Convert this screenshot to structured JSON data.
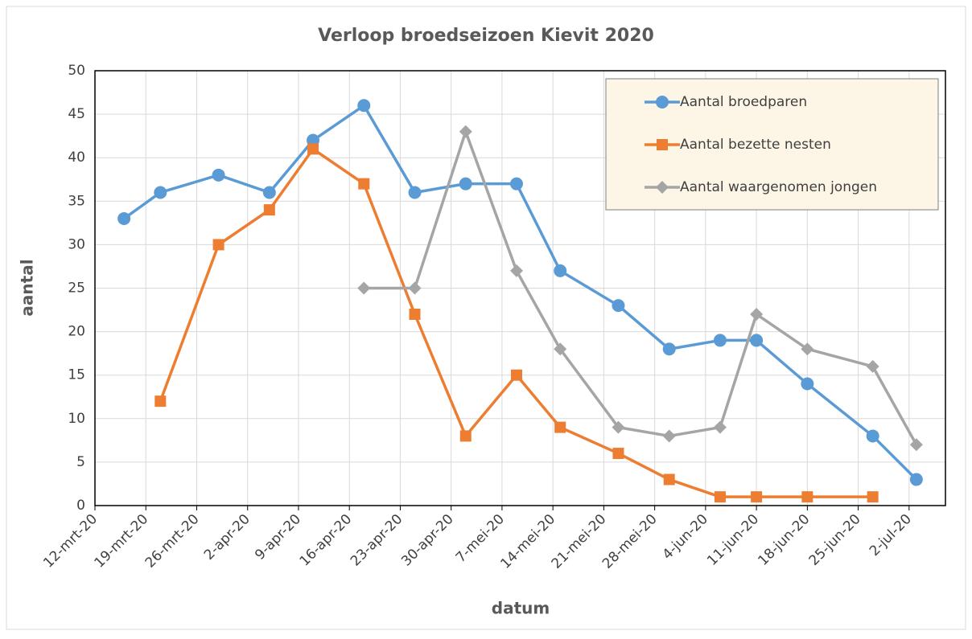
{
  "chart_data": {
    "type": "line",
    "title": "Verloop broedseizoen Kievit 2020",
    "x_label": "datum",
    "y_label": "aantal",
    "x": [
      "2020-03-16",
      "2020-03-21",
      "2020-03-29",
      "2020-04-05",
      "2020-04-11",
      "2020-04-18",
      "2020-04-25",
      "2020-05-02",
      "2020-05-09",
      "2020-05-15",
      "2020-05-23",
      "2020-05-30",
      "2020-06-06",
      "2020-06-11",
      "2020-06-18",
      "2020-06-27",
      "2020-07-03"
    ],
    "series": [
      {
        "name": "Aantal broedparen",
        "color": "#5b9bd5",
        "marker": "circle",
        "values": [
          33,
          36,
          38,
          36,
          42,
          46,
          36,
          37,
          37,
          27,
          23,
          18,
          19,
          19,
          14,
          8,
          3
        ]
      },
      {
        "name": "Aantal bezette nesten",
        "color": "#ed7d31",
        "marker": "square",
        "values": [
          null,
          12,
          30,
          34,
          41,
          37,
          22,
          8,
          15,
          9,
          6,
          3,
          1,
          1,
          1,
          1,
          null
        ]
      },
      {
        "name": "Aantal waargenomen jongen",
        "color": "#a5a5a5",
        "marker": "diamond",
        "values": [
          null,
          null,
          null,
          null,
          null,
          25,
          25,
          43,
          27,
          18,
          9,
          8,
          9,
          22,
          18,
          16,
          7
        ]
      }
    ],
    "xlim": [
      "2020-03-12",
      "2020-07-07"
    ],
    "xticks": [
      {
        "value": "2020-03-12",
        "label": "12-mrt-20"
      },
      {
        "value": "2020-03-19",
        "label": "19-mrt-20"
      },
      {
        "value": "2020-03-26",
        "label": "26-mrt-20"
      },
      {
        "value": "2020-04-02",
        "label": "2-apr-20"
      },
      {
        "value": "2020-04-09",
        "label": "9-apr-20"
      },
      {
        "value": "2020-04-16",
        "label": "16-apr-20"
      },
      {
        "value": "2020-04-23",
        "label": "23-apr-20"
      },
      {
        "value": "2020-04-30",
        "label": "30-apr-20"
      },
      {
        "value": "2020-05-07",
        "label": "7-mei-20"
      },
      {
        "value": "2020-05-14",
        "label": "14-mei-20"
      },
      {
        "value": "2020-05-21",
        "label": "21-mei-20"
      },
      {
        "value": "2020-05-28",
        "label": "28-mei-20"
      },
      {
        "value": "2020-06-04",
        "label": "4-jun-20"
      },
      {
        "value": "2020-06-11",
        "label": "11-jun-20"
      },
      {
        "value": "2020-06-18",
        "label": "18-jun-20"
      },
      {
        "value": "2020-06-25",
        "label": "25-jun-20"
      },
      {
        "value": "2020-07-02",
        "label": "2-jul-20"
      }
    ],
    "ylim": [
      0,
      50
    ],
    "yticks": [
      0,
      5,
      10,
      15,
      20,
      25,
      30,
      35,
      40,
      45,
      50
    ],
    "grid": true,
    "legend": "upper right"
  }
}
